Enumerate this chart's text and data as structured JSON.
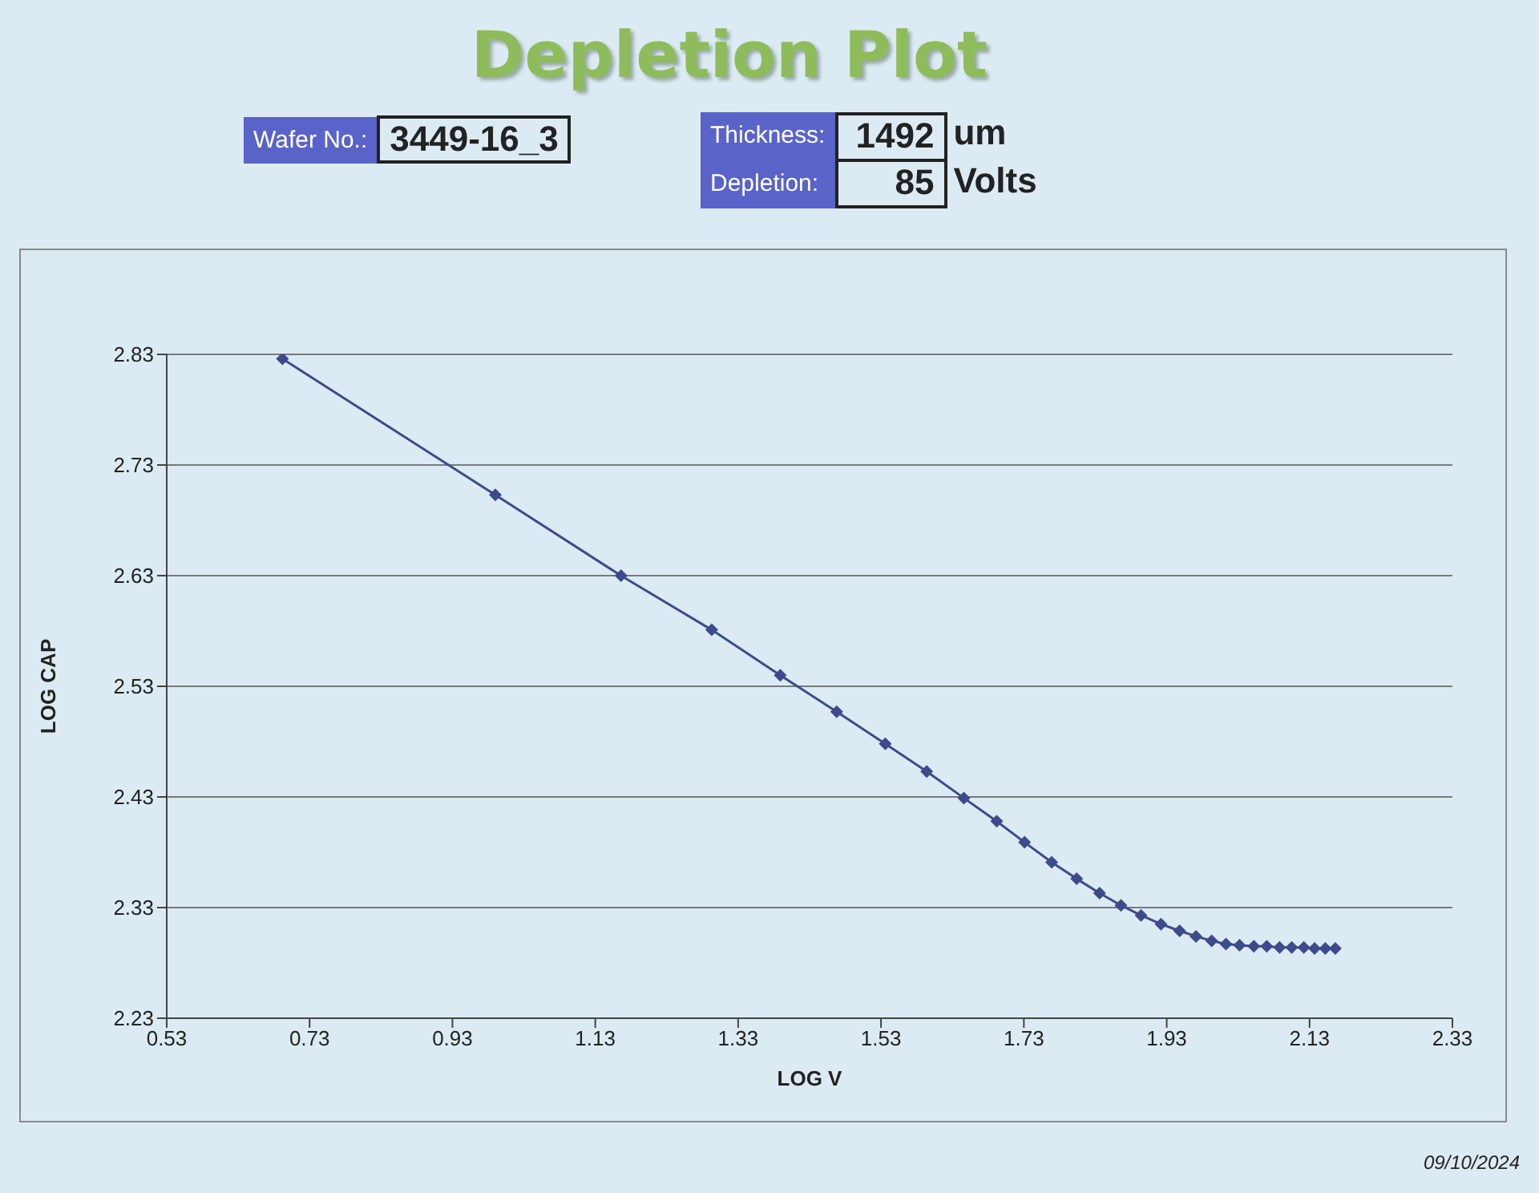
{
  "chart_data": {
    "type": "line",
    "title": "Depletion Plot",
    "xlabel": "LOG V",
    "ylabel": "LOG CAP",
    "annotations": [
      "Wafer No.:",
      "3449-16_3",
      "Thickness:",
      "1492",
      "um",
      "Depletion:",
      "85",
      "Volts",
      "09/10/2024"
    ],
    "x": [
      0.692,
      0.99,
      1.166,
      1.293,
      1.389,
      1.468,
      1.536,
      1.594,
      1.646,
      1.692,
      1.731,
      1.769,
      1.804,
      1.836,
      1.866,
      1.894,
      1.922,
      1.948,
      1.971,
      1.993,
      2.013,
      2.032,
      2.052,
      2.07,
      2.088,
      2.105,
      2.122,
      2.137,
      2.152,
      2.166
    ],
    "series": [
      {
        "color": "#3d4a8c",
        "values": [
          2.826,
          2.703,
          2.63,
          2.581,
          2.54,
          2.507,
          2.478,
          2.453,
          2.429,
          2.408,
          2.389,
          2.371,
          2.356,
          2.343,
          2.332,
          2.323,
          2.315,
          2.309,
          2.304,
          2.3,
          2.297,
          2.296,
          2.295,
          2.295,
          2.294,
          2.294,
          2.294,
          2.293,
          2.293,
          2.293
        ]
      }
    ],
    "xlim": [
      0.53,
      2.33
    ],
    "xticks": [
      0.53,
      0.73,
      0.93,
      1.13,
      1.33,
      1.53,
      1.73,
      1.93,
      2.13,
      2.33
    ],
    "ylim": [
      2.23,
      2.83
    ],
    "yticks": [
      2.23,
      2.33,
      2.43,
      2.53,
      2.63,
      2.73,
      2.83
    ],
    "grid": "y",
    "marker": "diamond",
    "line_style": "solid"
  }
}
